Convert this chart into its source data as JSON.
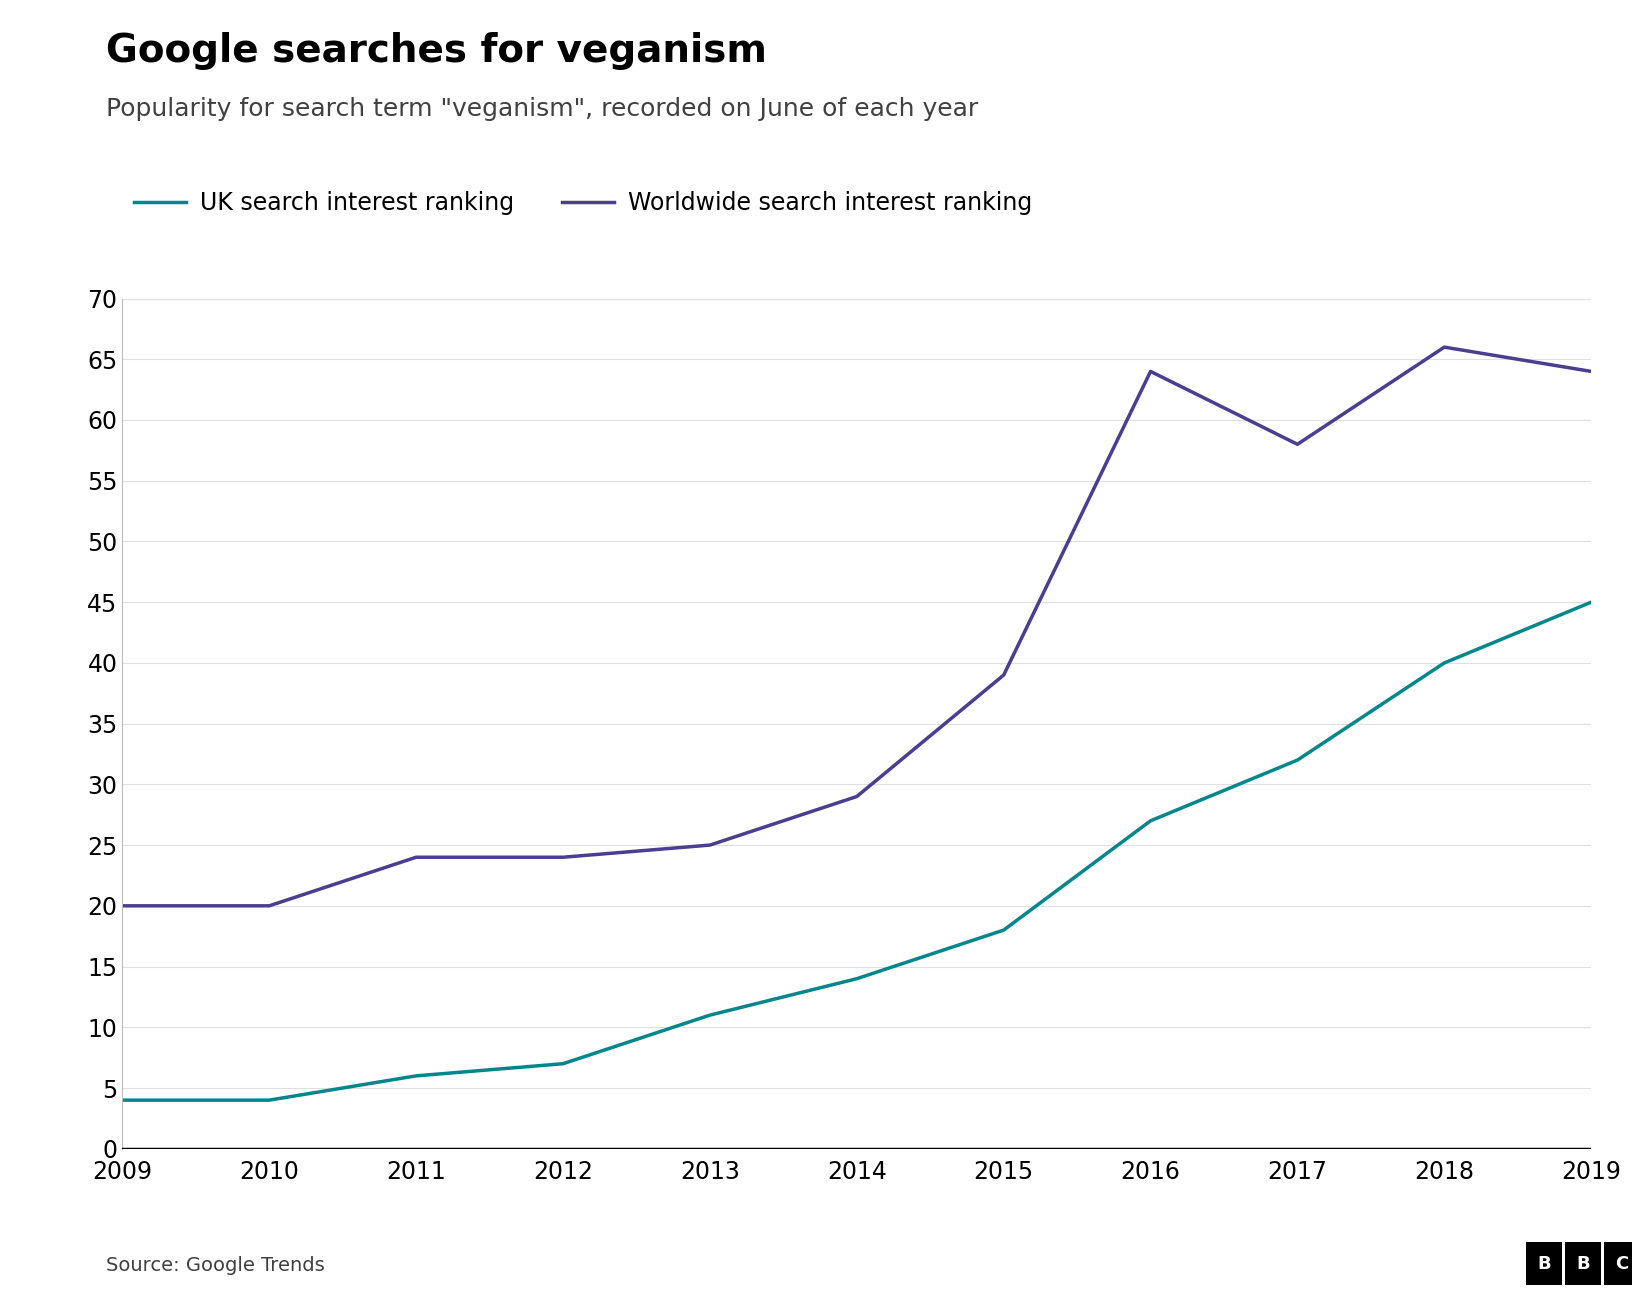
{
  "title": "Google searches for veganism",
  "subtitle": "Popularity for search term \"veganism\", recorded on June of each year",
  "source": "Source: Google Trends",
  "years": [
    2009,
    2010,
    2011,
    2012,
    2013,
    2014,
    2015,
    2016,
    2017,
    2018,
    2019
  ],
  "uk_values": [
    4,
    4,
    6,
    7,
    11,
    14,
    18,
    27,
    32,
    40,
    45
  ],
  "worldwide_values": [
    20,
    20,
    24,
    24,
    25,
    29,
    39,
    64,
    58,
    66,
    64
  ],
  "uk_color": "#00868b",
  "worldwide_color": "#4b3d8f",
  "uk_label": "UK search interest ranking",
  "worldwide_label": "Worldwide search interest ranking",
  "ylim": [
    0,
    70
  ],
  "yticks": [
    0,
    5,
    10,
    15,
    20,
    25,
    30,
    35,
    40,
    45,
    50,
    55,
    60,
    65,
    70
  ],
  "background_color": "#ffffff",
  "title_fontsize": 28,
  "subtitle_fontsize": 18,
  "tick_fontsize": 17,
  "legend_fontsize": 17,
  "source_fontsize": 14,
  "linewidth": 2.5
}
